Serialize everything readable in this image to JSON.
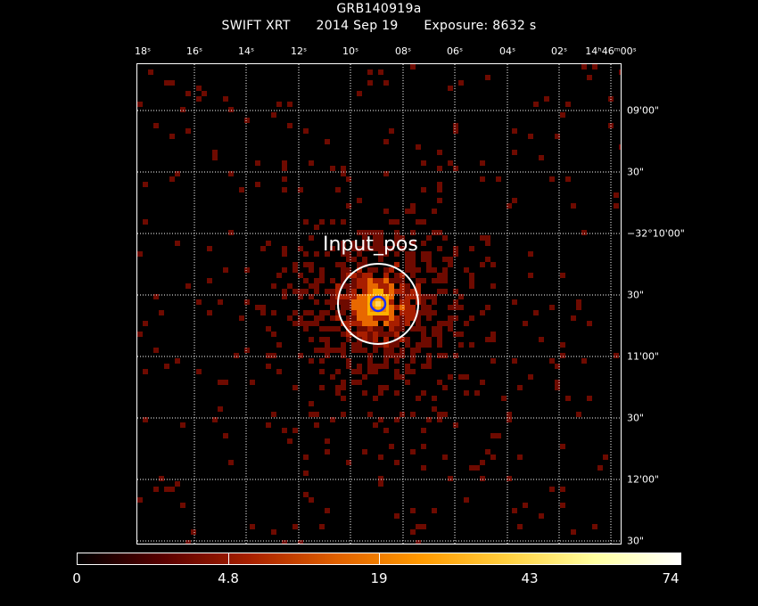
{
  "header": {
    "target": "GRB140919a",
    "instrument": "SWIFT XRT",
    "date": "2014 Sep 19",
    "exposure": "Exposure: 8632 s"
  },
  "axes": {
    "ra_ticks": [
      "18ˢ",
      "16ˢ",
      "14ˢ",
      "12ˢ",
      "10ˢ",
      "08ˢ",
      "06ˢ",
      "04ˢ",
      "02ˢ",
      "14ʰ46ᵐ00ˢ"
    ],
    "dec_ticks": [
      "09'00\"",
      "30\"",
      "−32°10'00\"",
      "30\"",
      "11'00\"",
      "30\"",
      "12'00\"",
      "30\""
    ]
  },
  "region": {
    "label": "Input_pos",
    "outer_color": "#ffffff",
    "inner_color": "#1a2cff"
  },
  "colorbar": {
    "labels": [
      "0",
      "4.8",
      "19",
      "43",
      "74"
    ],
    "colors": [
      "#000000",
      "#5a0000",
      "#a82000",
      "#e06000",
      "#ff9a00",
      "#ffd040",
      "#ffffa0",
      "#ffffff"
    ]
  },
  "style": {
    "grid_color": "#ffffff",
    "pixel_dim": "#6e0a00",
    "pixel_mid": "#a81e00",
    "pixel_bright": "#e86800",
    "pixel_core": "#ffb000"
  }
}
